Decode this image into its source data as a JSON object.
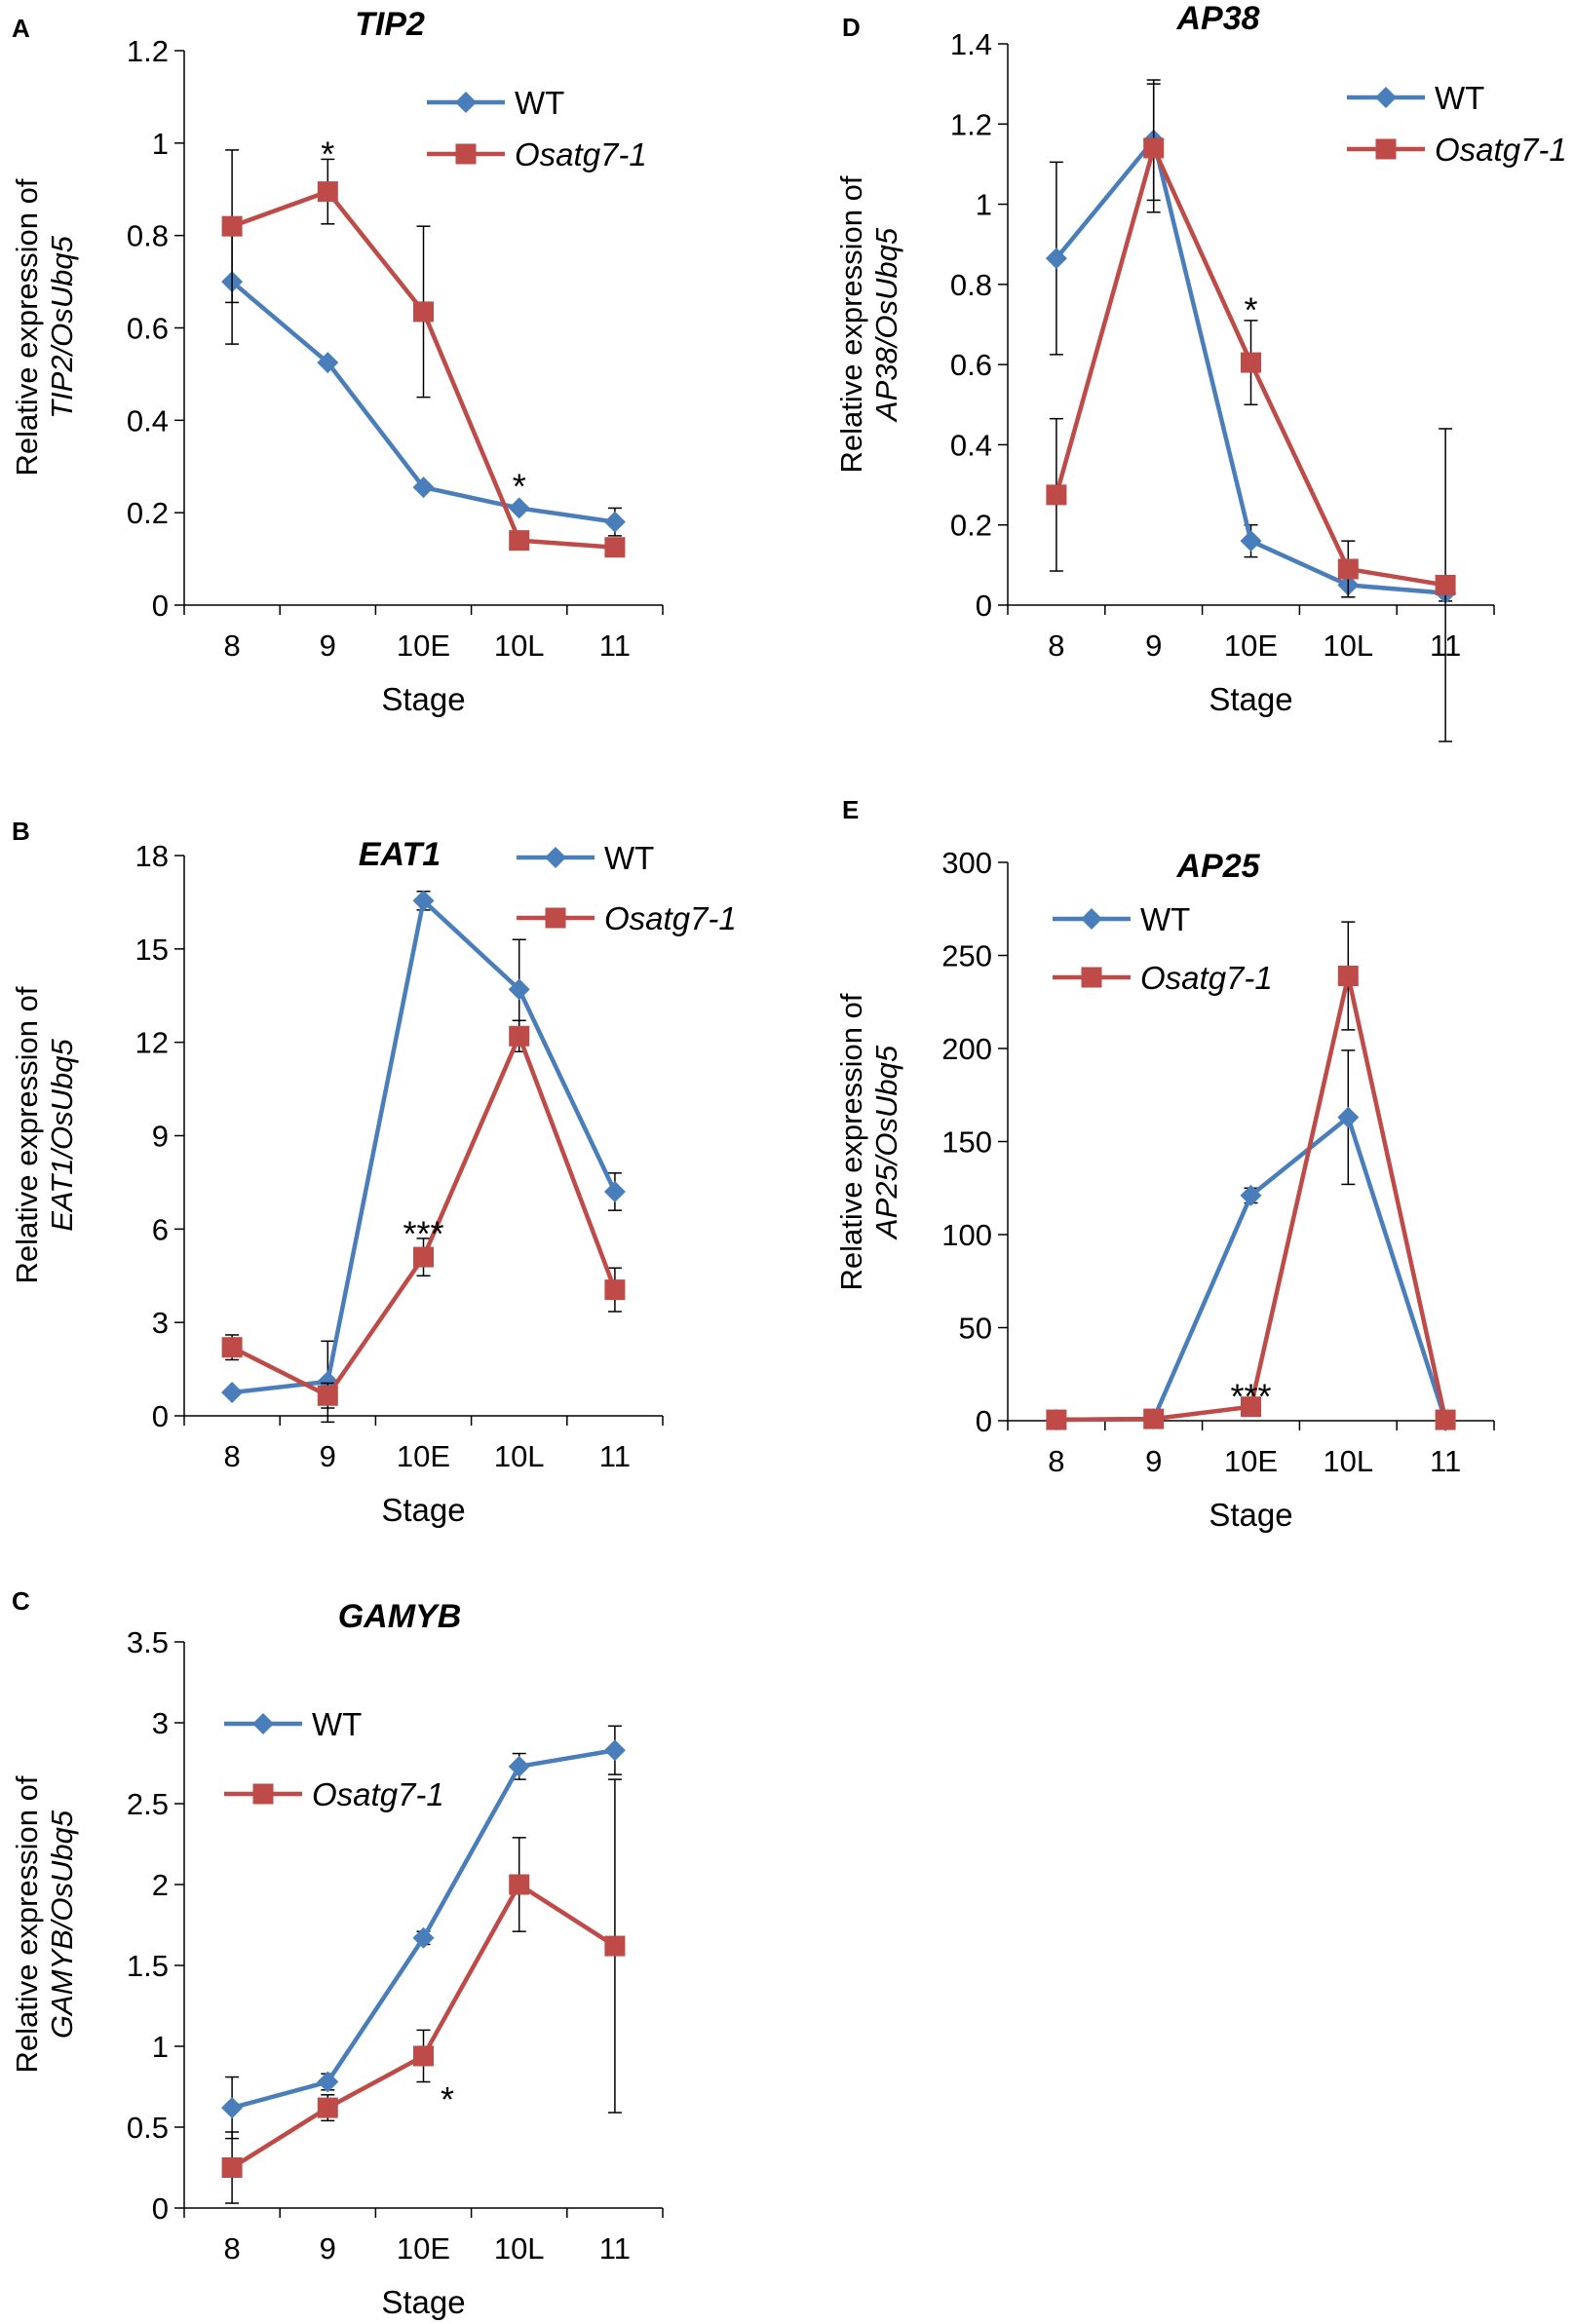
{
  "colors": {
    "wt": "#4a7ebb",
    "mutant": "#be4b48",
    "axis": "#000000"
  },
  "chart_data": [
    {
      "type": "line",
      "panel": "A",
      "title": "TIP2",
      "xlabel": "Stage",
      "ylabel_line1": "Relative expression of",
      "ylabel_line2": "TIP2/OsUbq5",
      "categories": [
        "8",
        "9",
        "10E",
        "10L",
        "11"
      ],
      "ylim": [
        0,
        1.2
      ],
      "yticks": [
        "0",
        "0.2",
        "0.4",
        "0.6",
        "0.8",
        "1",
        "1.2"
      ],
      "ytick_values": [
        0,
        0.2,
        0.4,
        0.6,
        0.8,
        1,
        1.2
      ],
      "legend": [
        "WT",
        "Osatg7-1"
      ],
      "legend_position": "top-right",
      "series": [
        {
          "name": "WT",
          "marker": "diamond",
          "values": [
            0.7,
            0.525,
            0.255,
            0.21,
            0.18
          ],
          "errors": [
            0.135,
            0,
            0,
            0,
            0.03
          ]
        },
        {
          "name": "Osatg7-1",
          "marker": "square",
          "values": [
            0.82,
            0.895,
            0.635,
            0.14,
            0.125
          ],
          "errors": [
            0.165,
            0.07,
            0.185,
            0,
            0
          ]
        }
      ],
      "annotations": [
        {
          "text": "*",
          "category": "9",
          "value": 0.98
        },
        {
          "text": "*",
          "category": "10L",
          "value": 0.26
        }
      ]
    },
    {
      "type": "line",
      "panel": "B",
      "title": "EAT1",
      "xlabel": "Stage",
      "ylabel_line1": "Relative expression of",
      "ylabel_line2": "EAT1/OsUbq5",
      "categories": [
        "8",
        "9",
        "10E",
        "10L",
        "11"
      ],
      "ylim": [
        0,
        18
      ],
      "yticks": [
        "0",
        "3",
        "6",
        "9",
        "12",
        "15",
        "18"
      ],
      "ytick_values": [
        0,
        3,
        6,
        9,
        12,
        15,
        18
      ],
      "legend": [
        "WT",
        "Osatg7-1"
      ],
      "legend_position": "top-right",
      "series": [
        {
          "name": "WT",
          "marker": "diamond",
          "values": [
            0.75,
            1.1,
            16.55,
            13.7,
            7.2
          ],
          "errors": [
            0,
            1.3,
            0.3,
            1.6,
            0.6
          ]
        },
        {
          "name": "Osatg7-1",
          "marker": "square",
          "values": [
            2.2,
            0.65,
            5.1,
            12.2,
            4.05
          ],
          "errors": [
            0.4,
            0.4,
            0.6,
            0.5,
            0.7
          ]
        }
      ],
      "annotations": [
        {
          "text": "***",
          "category": "10E",
          "value": 5.9
        }
      ]
    },
    {
      "type": "line",
      "panel": "C",
      "title": "GAMYB",
      "xlabel": "Stage",
      "ylabel_line1": "Relative expression of",
      "ylabel_line2": "GAMYB/OsUbq5",
      "categories": [
        "8",
        "9",
        "10E",
        "10L",
        "11"
      ],
      "ylim": [
        0,
        3.5
      ],
      "yticks": [
        "0",
        "0.5",
        "1",
        "1.5",
        "2",
        "2.5",
        "3",
        "3.5"
      ],
      "ytick_values": [
        0,
        0.5,
        1,
        1.5,
        2,
        2.5,
        3,
        3.5
      ],
      "legend": [
        "WT",
        "Osatg7-1"
      ],
      "legend_position": "top-left",
      "series": [
        {
          "name": "WT",
          "marker": "diamond",
          "values": [
            0.62,
            0.78,
            1.67,
            2.73,
            2.83
          ],
          "errors": [
            0.19,
            0.05,
            0.04,
            0.08,
            0.15
          ]
        },
        {
          "name": "Osatg7-1",
          "marker": "square",
          "values": [
            0.25,
            0.62,
            0.94,
            2.0,
            1.62
          ],
          "errors": [
            0.22,
            0.08,
            0.16,
            0.29,
            1.03
          ]
        }
      ],
      "annotations": [
        {
          "text": "*",
          "category": "10E",
          "offset": 0.25,
          "value": 0.68
        }
      ]
    },
    {
      "type": "line",
      "panel": "D",
      "title": "AP38",
      "xlabel": "Stage",
      "ylabel_line1": "Relative expression of",
      "ylabel_line2": "AP38/OsUbq5",
      "categories": [
        "8",
        "9",
        "10E",
        "10L",
        "11"
      ],
      "ylim": [
        0,
        1.4
      ],
      "yticks": [
        "0",
        "0.2",
        "0.4",
        "0.6",
        "0.8",
        "1",
        "1.2",
        "1.4"
      ],
      "ytick_values": [
        0,
        0.2,
        0.4,
        0.6,
        0.8,
        1,
        1.2,
        1.4
      ],
      "legend": [
        "WT",
        "Osatg7-1"
      ],
      "legend_position": "top-right",
      "series": [
        {
          "name": "WT",
          "marker": "diamond",
          "values": [
            0.865,
            1.16,
            0.16,
            0.05,
            0.03
          ],
          "errors": [
            0.24,
            0.15,
            0.04,
            0.03,
            0.02
          ]
        },
        {
          "name": "Osatg7-1",
          "marker": "square",
          "values": [
            0.275,
            1.14,
            0.605,
            0.09,
            0.05
          ],
          "errors": [
            0.19,
            0.16,
            0.105,
            0.07,
            0.39
          ]
        }
      ],
      "annotations": [
        {
          "text": "*",
          "category": "10E",
          "value": 0.74
        }
      ]
    },
    {
      "type": "line",
      "panel": "E",
      "title": "AP25",
      "xlabel": "Stage",
      "ylabel_line1": "Relative expression of",
      "ylabel_line2": "AP25/OsUbq5",
      "categories": [
        "8",
        "9",
        "10E",
        "10L",
        "11"
      ],
      "ylim": [
        0,
        300
      ],
      "yticks": [
        "0",
        "50",
        "100",
        "150",
        "200",
        "250",
        "300"
      ],
      "ytick_values": [
        0,
        50,
        100,
        150,
        200,
        250,
        300
      ],
      "legend": [
        "WT",
        "Osatg7-1"
      ],
      "legend_position": "top-left",
      "series": [
        {
          "name": "WT",
          "marker": "diamond",
          "values": [
            0.5,
            1,
            121,
            163,
            0
          ],
          "errors": [
            0,
            0,
            4,
            36,
            0
          ]
        },
        {
          "name": "Osatg7-1",
          "marker": "square",
          "values": [
            0.5,
            1,
            7.5,
            239,
            0.5
          ],
          "errors": [
            0,
            0,
            0,
            29,
            0
          ]
        }
      ],
      "annotations": [
        {
          "text": "***",
          "category": "10E",
          "value": 14
        }
      ]
    }
  ]
}
